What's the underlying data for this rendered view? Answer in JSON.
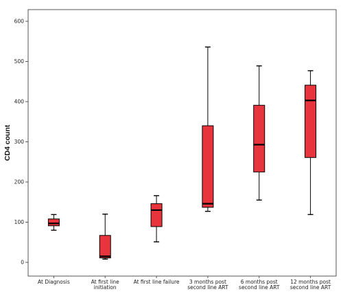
{
  "chart_data": {
    "type": "boxplot",
    "title": "",
    "xlabel": "",
    "ylabel": "CD4 count",
    "ylim": [
      -5,
      620
    ],
    "yticks": [
      0,
      100,
      200,
      300,
      400,
      500,
      600
    ],
    "grid": false,
    "box_color": "#e8343c",
    "categories": [
      [
        "At Diagnosis"
      ],
      [
        "At first line",
        "initiation"
      ],
      [
        "At first line failure"
      ],
      [
        "3 months post",
        "second line ART"
      ],
      [
        "6 months post",
        "second line ART"
      ],
      [
        "12 months post",
        "second line ART"
      ]
    ],
    "boxes": [
      {
        "min": 80,
        "q1": 91,
        "median": 97,
        "q3": 108,
        "max": 119
      },
      {
        "min": 8,
        "q1": 11,
        "median": 15,
        "q3": 67,
        "max": 120
      },
      {
        "min": 51,
        "q1": 89,
        "median": 130,
        "q3": 146,
        "max": 166
      },
      {
        "min": 127,
        "q1": 137,
        "median": 146,
        "q3": 340,
        "max": 536
      },
      {
        "min": 155,
        "q1": 225,
        "median": 293,
        "q3": 391,
        "max": 489
      },
      {
        "min": 119,
        "q1": 261,
        "median": 403,
        "q3": 441,
        "max": 477
      }
    ]
  }
}
